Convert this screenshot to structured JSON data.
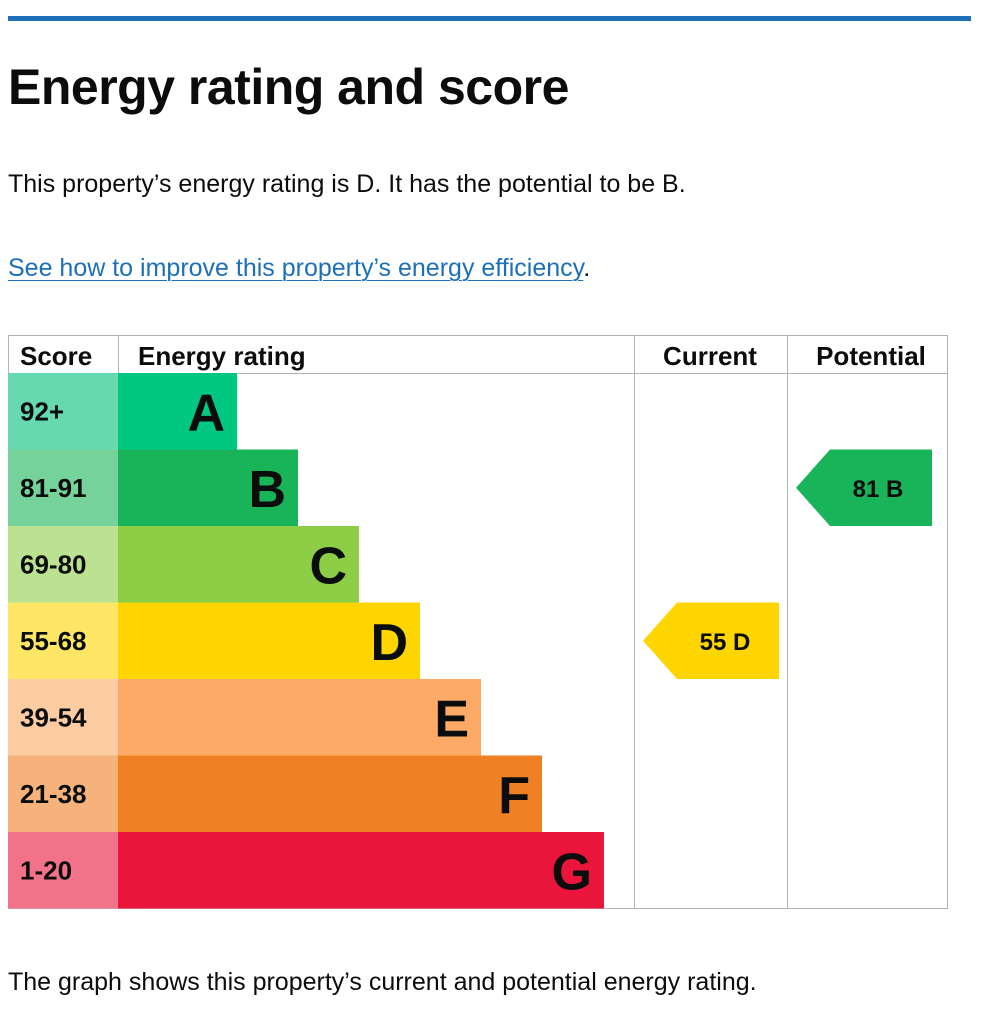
{
  "heading": "Energy rating and score",
  "summary": "This property’s energy rating is D. It has the potential to be B.",
  "improve_link": "See how to improve this property’s energy efficiency",
  "improve_suffix": ".",
  "footnote": "The graph shows this property’s current and potential energy rating.",
  "colors": {
    "accent_rule": "#1d70b8",
    "link": "#1d70b8"
  },
  "chart_data": {
    "type": "table",
    "columns": [
      "Score",
      "Energy rating",
      "Current",
      "Potential"
    ],
    "bands": [
      {
        "score": "92+",
        "letter": "A",
        "color": "#00c781",
        "score_bg": "#66d9b1"
      },
      {
        "score": "81-91",
        "letter": "B",
        "color": "#19b459",
        "score_bg": "#75d29b"
      },
      {
        "score": "69-80",
        "letter": "C",
        "color": "#8dce46",
        "score_bg": "#bbe290"
      },
      {
        "score": "55-68",
        "letter": "D",
        "color": "#ffd500",
        "score_bg": "#ffe666"
      },
      {
        "score": "39-54",
        "letter": "E",
        "color": "#fcaa65",
        "score_bg": "#fdcca3"
      },
      {
        "score": "21-38",
        "letter": "F",
        "color": "#ef8023",
        "score_bg": "#f5b37b"
      },
      {
        "score": "1-20",
        "letter": "G",
        "color": "#e9153b",
        "score_bg": "#f27389"
      }
    ],
    "current": {
      "score": 55,
      "letter": "D",
      "label": "55  D"
    },
    "potential": {
      "score": 81,
      "letter": "B",
      "label": "81  B"
    }
  }
}
